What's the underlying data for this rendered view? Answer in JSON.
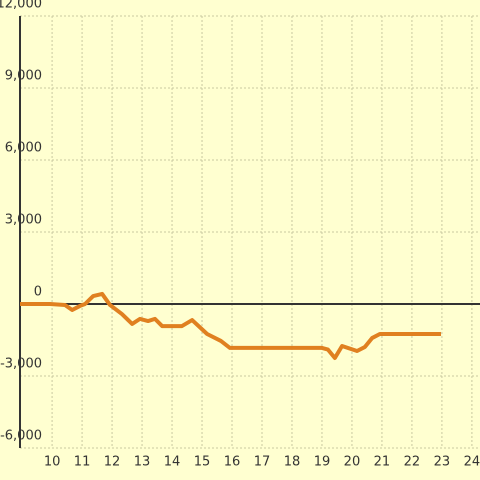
{
  "chart_data": {
    "type": "line",
    "x": [
      8.93,
      9.93,
      10.43,
      10.67,
      10.93,
      11.1,
      11.37,
      11.67,
      11.93,
      12.33,
      12.67,
      12.93,
      13.2,
      13.43,
      13.67,
      14.33,
      14.67,
      15.17,
      15.63,
      15.93,
      19.0,
      19.2,
      19.43,
      19.67,
      20.17,
      20.43,
      20.67,
      20.93,
      22.97
    ],
    "series": [
      {
        "color": "#e08020",
        "values": [
          0,
          0,
          -40,
          -250,
          -80,
          0,
          330,
          420,
          -40,
          -420,
          -830,
          -620,
          -710,
          -620,
          -920,
          -920,
          -670,
          -1250,
          -1540,
          -1830,
          -1830,
          -1900,
          -2250,
          -1750,
          -1960,
          -1790,
          -1420,
          -1250,
          -1250
        ]
      }
    ],
    "xlim": [
      8.93,
      24.27
    ],
    "xticks": [
      10,
      11,
      12,
      13,
      14,
      15,
      16,
      17,
      18,
      19,
      20,
      21,
      22,
      23,
      24
    ],
    "ylim": [
      -6000,
      12000
    ],
    "yticks": [
      {
        "value": -6000,
        "label": "-6,000"
      },
      {
        "value": -3000,
        "label": "-3,000"
      },
      0,
      {
        "value": 3000,
        "label": "3,000"
      },
      {
        "value": 6000,
        "label": "6,000"
      },
      {
        "value": 9000,
        "label": "9,000"
      },
      {
        "value": 12000,
        "label": "12,000"
      }
    ],
    "grid": true
  }
}
